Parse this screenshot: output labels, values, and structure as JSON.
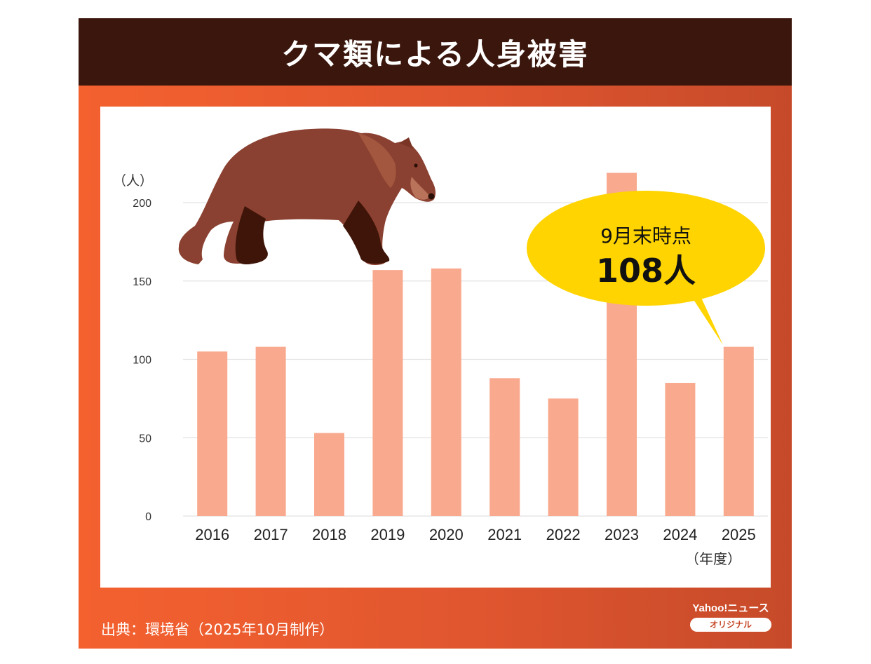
{
  "header": {
    "title": "クマ類による人身被害"
  },
  "chart_data": {
    "type": "bar",
    "title": "クマ類による人身被害",
    "ylabel": "（人）",
    "xlabel": "（年度）",
    "categories": [
      "2016",
      "2017",
      "2018",
      "2019",
      "2020",
      "2021",
      "2022",
      "2023",
      "2024",
      "2025"
    ],
    "values": [
      105,
      108,
      53,
      157,
      158,
      88,
      75,
      219,
      85,
      108
    ],
    "ylim": [
      0,
      200
    ],
    "yticks": [
      0,
      50,
      100,
      150,
      200
    ],
    "grid": true,
    "bar_color": "#f9a98e",
    "annotation": {
      "line1": "9月末時点",
      "line2": "108人",
      "color": "#ffd400"
    }
  },
  "footer": {
    "source": "出典：環境省（2025年10月制作）",
    "brand_name": "Yahoo!ニュース",
    "brand_badge": "オリジナル"
  },
  "icons": {
    "bear": "bear-illustration-icon"
  }
}
